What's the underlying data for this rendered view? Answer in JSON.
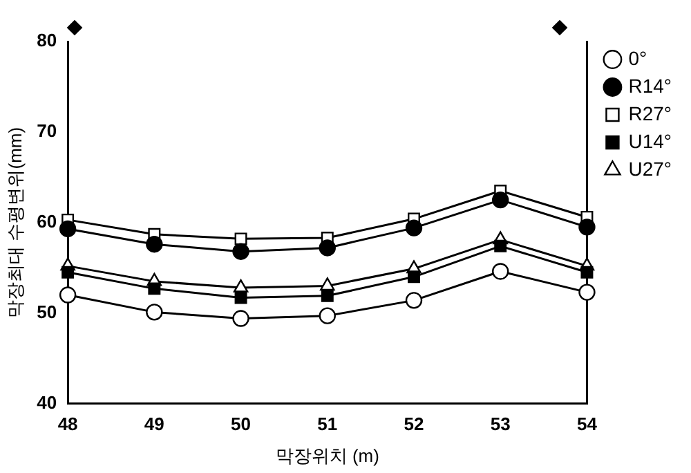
{
  "chart_data": {
    "type": "line",
    "xlabel": "막장위치 (m)",
    "ylabel": "막장최대 수평변위(mm)",
    "x": [
      48,
      49,
      50,
      51,
      52,
      53,
      54
    ],
    "xlim": [
      48,
      54
    ],
    "xticks": [
      48,
      49,
      50,
      51,
      52,
      53,
      54
    ],
    "ylim": [
      40,
      80
    ],
    "yticks": [
      40,
      50,
      60,
      70,
      80
    ],
    "grid": false,
    "legend": "right",
    "series": [
      {
        "name": "0°",
        "color": "#ffffff",
        "marker": "circle",
        "values": [
          52.0,
          50.1,
          49.4,
          49.7,
          51.4,
          54.6,
          52.3
        ]
      },
      {
        "name": "R14°",
        "color": "#000000",
        "marker": "circle",
        "values": [
          59.3,
          57.6,
          56.8,
          57.2,
          59.4,
          62.5,
          59.5
        ]
      },
      {
        "name": "R27°",
        "color": "#ffffff",
        "marker": "square",
        "values": [
          60.3,
          58.7,
          58.2,
          58.3,
          60.4,
          63.5,
          60.6
        ]
      },
      {
        "name": "U14°",
        "color": "#000000",
        "marker": "square",
        "values": [
          54.5,
          52.7,
          51.7,
          51.9,
          54.0,
          57.4,
          54.5
        ]
      },
      {
        "name": "U27°",
        "color": "#ffffff",
        "marker": "triangle",
        "values": [
          55.2,
          53.5,
          52.8,
          53.0,
          54.9,
          58.1,
          55.2
        ]
      }
    ]
  }
}
